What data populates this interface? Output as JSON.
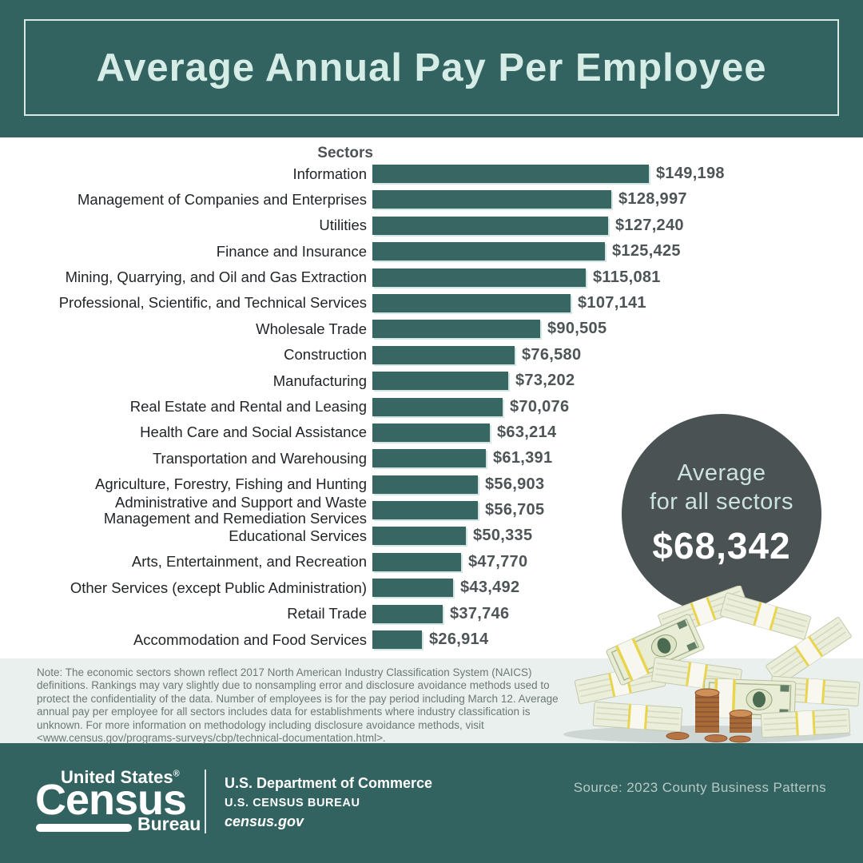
{
  "header": {
    "title": "Average Annual Pay Per Employee"
  },
  "chart_data": {
    "type": "bar",
    "orientation": "horizontal",
    "column_header": "Sectors",
    "title": "Average Annual Pay Per Employee",
    "bars": [
      {
        "label": "Information",
        "value": 149198,
        "display": "$149,198"
      },
      {
        "label": "Management of Companies and Enterprises",
        "value": 128997,
        "display": "$128,997"
      },
      {
        "label": "Utilities",
        "value": 127240,
        "display": "$127,240"
      },
      {
        "label": "Finance and Insurance",
        "value": 125425,
        "display": "$125,425"
      },
      {
        "label": "Mining, Quarrying, and Oil and Gas Extraction",
        "value": 115081,
        "display": "$115,081"
      },
      {
        "label": "Professional, Scientific, and Technical Services",
        "value": 107141,
        "display": "$107,141"
      },
      {
        "label": "Wholesale Trade",
        "value": 90505,
        "display": "$90,505"
      },
      {
        "label": "Construction",
        "value": 76580,
        "display": "$76,580"
      },
      {
        "label": "Manufacturing",
        "value": 73202,
        "display": "$73,202"
      },
      {
        "label": "Real Estate and Rental and Leasing",
        "value": 70076,
        "display": "$70,076"
      },
      {
        "label": "Health Care and Social Assistance",
        "value": 63214,
        "display": "$63,214"
      },
      {
        "label": "Transportation and Warehousing",
        "value": 61391,
        "display": "$61,391"
      },
      {
        "label": "Agriculture, Forestry, Fishing and Hunting",
        "value": 56903,
        "display": "$56,903"
      },
      {
        "label": "Administrative and Support and Waste\nManagement and Remediation Services",
        "value": 56705,
        "display": "$56,705"
      },
      {
        "label": "Educational Services",
        "value": 50335,
        "display": "$50,335"
      },
      {
        "label": "Arts, Entertainment, and Recreation",
        "value": 47770,
        "display": "$47,770"
      },
      {
        "label": "Other Services (except Public Administration)",
        "value": 43492,
        "display": "$43,492"
      },
      {
        "label": "Retail Trade",
        "value": 37746,
        "display": "$37,746"
      },
      {
        "label": "Accommodation and Food Services",
        "value": 26914,
        "display": "$26,914"
      }
    ],
    "average_all_sectors": 68342
  },
  "average_badge": {
    "line1": "Average",
    "line2": "for all sectors",
    "value": "$68,342"
  },
  "note": "Note: The economic sectors shown reflect 2017 North American Industry Classification System (NAICS) definitions. Rankings may vary slightly due to nonsampling error and disclosure avoidance methods used to protect the confidentiality of the data. Number of employees is for the pay period including March 12. Average annual pay per employee for all sectors includes data for establishments where industry classification is unknown. For more information on methodology including disclosure avoidance methods, visit <www.census.gov/programs-surveys/cbp/technical-documentation.html>.",
  "footer": {
    "logo": {
      "top": "United States",
      "reg": "®",
      "main": "Census",
      "sub": "Bureau"
    },
    "dept": "U.S. Department of Commerce",
    "bureau": "U.S. CENSUS BUREAU",
    "site": "census.gov",
    "source": "Source: 2023 County Business Patterns"
  },
  "colors": {
    "teal": "#336360",
    "bar_teal": "#386663",
    "badge_gray": "#4a5254",
    "title_mint": "#d6ece6",
    "note_bg": "#e9f0ee"
  }
}
